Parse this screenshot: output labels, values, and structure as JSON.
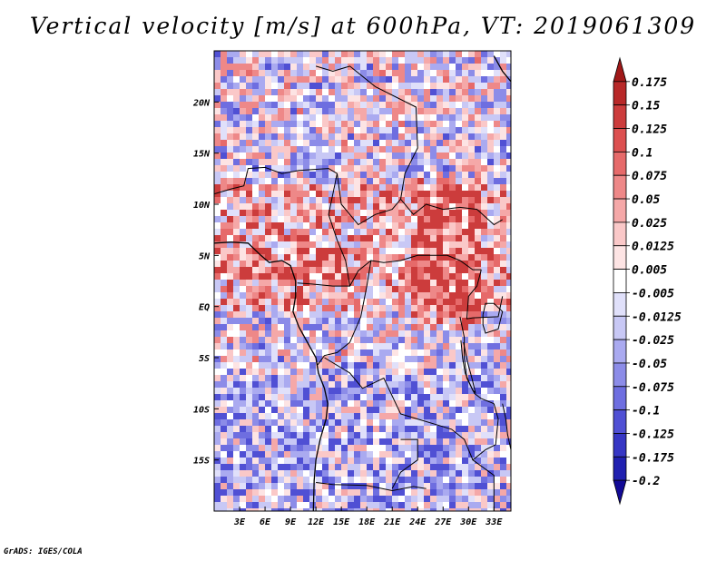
{
  "title": "Vertical velocity [m/s] at 600hPa, VT: 2019061309",
  "footer": "GrADS: IGES/COLA",
  "map": {
    "field": "Vertical velocity",
    "units": "m/s",
    "level": "600hPa",
    "valid_time": "2019061309",
    "lon_range": [
      0,
      35
    ],
    "lat_range": [
      -20,
      25
    ],
    "lat_ticks": [
      {
        "value": 20,
        "label": "20N"
      },
      {
        "value": 15,
        "label": "15N"
      },
      {
        "value": 10,
        "label": "10N"
      },
      {
        "value": 5,
        "label": "5N"
      },
      {
        "value": 0,
        "label": "EQ"
      },
      {
        "value": -5,
        "label": "5S"
      },
      {
        "value": -10,
        "label": "10S"
      },
      {
        "value": -15,
        "label": "15S"
      }
    ],
    "lon_ticks": [
      {
        "value": 3,
        "label": "3E"
      },
      {
        "value": 6,
        "label": "6E"
      },
      {
        "value": 9,
        "label": "9E"
      },
      {
        "value": 12,
        "label": "12E"
      },
      {
        "value": 15,
        "label": "15E"
      },
      {
        "value": 18,
        "label": "18E"
      },
      {
        "value": 21,
        "label": "21E"
      },
      {
        "value": 24,
        "label": "24E"
      },
      {
        "value": 27,
        "label": "27E"
      },
      {
        "value": 30,
        "label": "30E"
      },
      {
        "value": 33,
        "label": "33E"
      }
    ]
  },
  "colorbar": {
    "levels": [
      "0.175",
      "0.15",
      "0.125",
      "0.1",
      "0.075",
      "0.05",
      "0.025",
      "0.0125",
      "0.005",
      "-0.005",
      "-0.0125",
      "-0.025",
      "-0.05",
      "-0.075",
      "-0.1",
      "-0.125",
      "-0.175",
      "-0.2"
    ],
    "colors": [
      "#a01818",
      "#b82828",
      "#cc3c3c",
      "#dc5050",
      "#e66a6a",
      "#ee8888",
      "#f5a8a8",
      "#fac8c8",
      "#fde4e4",
      "#ffffff",
      "#e0e0fa",
      "#c8c8f5",
      "#aaaaf0",
      "#8c8ce8",
      "#6e6ee0",
      "#5050d4",
      "#3636c4",
      "#2020b0",
      "#120a96"
    ]
  }
}
